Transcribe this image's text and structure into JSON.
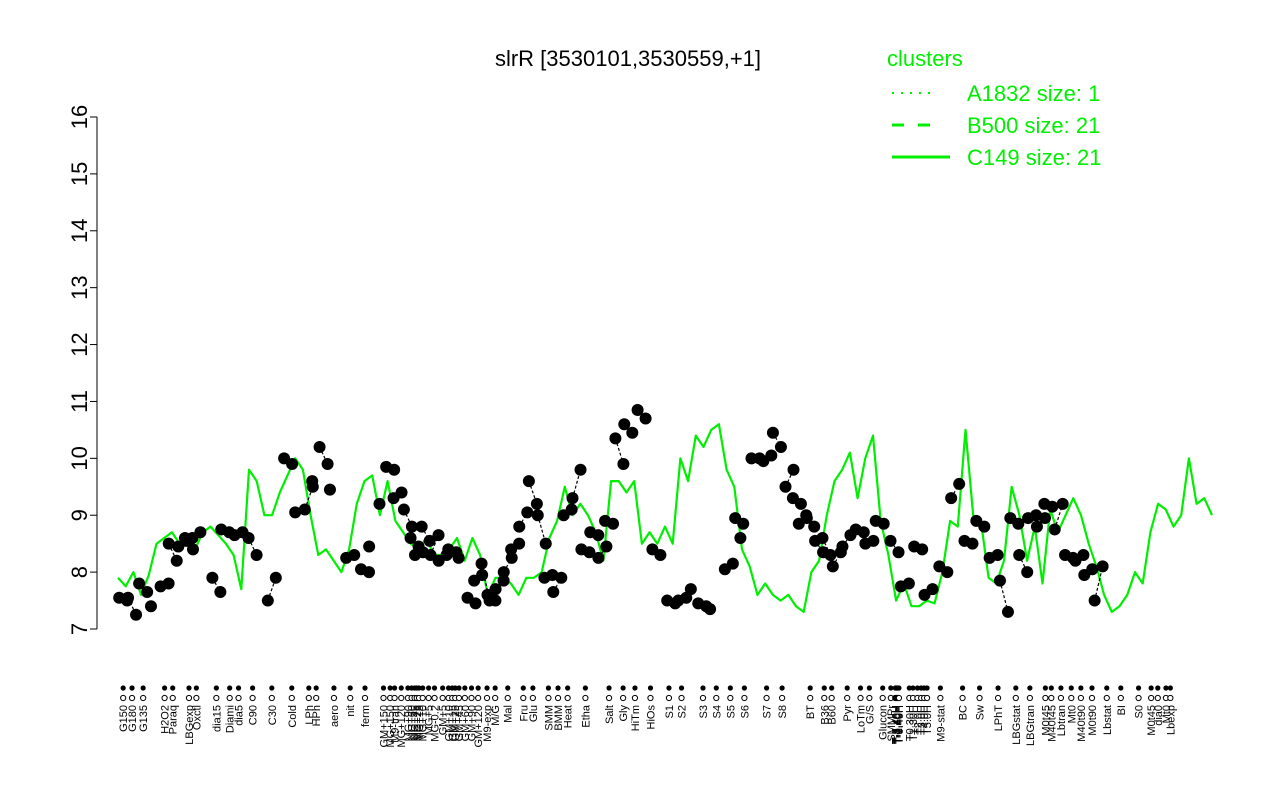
{
  "chart_data": {
    "type": "line",
    "title": "slrR [3530101,3530559,+1]",
    "xlabel": "",
    "ylabel": "",
    "ylim": [
      7,
      16
    ],
    "yticks": [
      7,
      8,
      9,
      10,
      11,
      12,
      13,
      14,
      15,
      16
    ],
    "grid": false,
    "legend": {
      "title": "clusters",
      "placement": "top-right",
      "color": "#00ee00",
      "entries": [
        {
          "label": "A1832 size: 1",
          "style": "dotted"
        },
        {
          "label": "B500 size: 21",
          "style": "dashed"
        },
        {
          "label": "C149 size: 21",
          "style": "solid"
        }
      ]
    },
    "colors": {
      "line": "#00ee00",
      "points": "#000000",
      "axis": "#000000"
    },
    "x_tick_labels": [
      "G150",
      "G180",
      "G135",
      "H2O2",
      "Paraq",
      "LBGexp",
      "Oxctl",
      "dia15",
      "Diami",
      "dia5",
      "C90",
      "C30",
      "Cold",
      "LPh",
      "HPh",
      "aero",
      "nit",
      "ferm",
      "GM+150",
      "MG+150",
      "M9-tran",
      "MG+120",
      "MG+90",
      "MG+60",
      "MG+45",
      "MG+25",
      "MG+15",
      "MG+10",
      "MG+5",
      "MG-0.2",
      "GM+5",
      "GM+10",
      "GM+15",
      "GM+25",
      "GM+45",
      "GM+60",
      "GM+90",
      "GM+120",
      "M9-exp",
      "M/G",
      "Mal",
      "Fru",
      "Glu",
      "SMM",
      "BMM",
      "Heat",
      "Etha",
      "Salt",
      "Gly",
      "HiTm",
      "HiOs",
      "S1",
      "S2",
      "S3",
      "S4",
      "S5",
      "S6",
      "S7",
      "S8",
      "BT",
      "B36",
      "B60",
      "Pyr",
      "LoTm",
      "G/S",
      "Glucon",
      "SMMPr",
      "T-5.40H",
      "T-4.40H",
      "T-3.40H",
      "T-2.40H",
      "T-1.40H",
      "T-0.40H",
      "T0.30H",
      "T1.30H",
      "T2.0H",
      "T3.0H",
      "T4.0H",
      "T5.0H",
      "M9-stat",
      "BC",
      "Sw",
      "LPhT",
      "LBGstat",
      "LBGtran",
      "M0t45",
      "M40t45",
      "Lbtran",
      "Mt0",
      "M40t90",
      "M0t90",
      "Lbstat",
      "BI",
      "S0",
      "M0t45",
      "dia0",
      "Mt0",
      "Lbexp"
    ],
    "x_label_positions": [
      0.007,
      0.019,
      0.034,
      0.063,
      0.074,
      0.096,
      0.106,
      0.133,
      0.151,
      0.163,
      0.182,
      0.208,
      0.235,
      0.258,
      0.268,
      0.292,
      0.314,
      0.334,
      0.359,
      0.368,
      0.374,
      0.383,
      0.392,
      0.397,
      0.401,
      0.404,
      0.407,
      0.412,
      0.42,
      0.428,
      0.439,
      0.447,
      0.452,
      0.456,
      0.461,
      0.469,
      0.478,
      0.487,
      0.499,
      0.51,
      0.527,
      0.548,
      0.561,
      0.582,
      0.595,
      0.608,
      0.632,
      0.664,
      0.683,
      0.699,
      0.72,
      0.745,
      0.762,
      0.791,
      0.809,
      0.828,
      0.847,
      0.877,
      0.898,
      0.936,
      0.955,
      0.965,
      0.986,
      1.004,
      1.016,
      1.034,
      1.045,
      1.051,
      1.052,
      1.053,
      1.054,
      1.055,
      1.056,
      1.07,
      1.075,
      1.081,
      1.086,
      1.09,
      1.094,
      1.112,
      1.142,
      1.165,
      1.19,
      1.214,
      1.233,
      1.254,
      1.262,
      1.275,
      1.289,
      1.302,
      1.317,
      1.337,
      1.356,
      1.38,
      1.397,
      1.406,
      1.417,
      1.423
    ],
    "series": [
      {
        "line": "solid",
        "x": [
          0,
          1,
          2,
          3,
          4,
          5,
          6,
          7,
          8,
          9,
          10,
          11,
          12,
          13,
          14,
          15,
          16,
          17,
          18,
          19,
          20,
          21,
          22,
          23,
          24,
          25,
          26,
          27,
          28,
          29,
          30,
          31,
          32,
          33,
          34,
          35,
          36,
          37,
          38,
          39,
          40,
          41,
          42,
          43,
          44,
          45,
          46,
          47,
          48,
          49,
          50,
          51,
          52,
          53,
          54,
          55,
          56,
          57,
          58,
          59,
          60,
          61,
          62,
          63,
          64,
          65,
          66,
          67,
          68,
          69,
          70,
          71,
          72,
          73,
          74,
          75,
          76,
          77,
          78,
          79,
          80,
          81,
          82,
          83,
          84,
          85,
          86,
          87,
          88,
          89,
          90,
          91,
          92,
          93,
          94,
          95,
          96,
          97,
          98,
          99,
          100,
          101,
          102,
          103,
          104,
          105,
          106,
          107,
          108,
          109,
          110,
          111,
          112,
          113,
          114,
          115,
          116,
          117,
          118,
          119,
          120,
          121,
          122,
          123,
          124,
          125,
          126,
          127,
          128,
          129,
          130,
          131,
          132,
          133,
          134,
          135,
          136,
          137,
          138,
          139,
          140,
          141,
          142
        ],
        "y": [
          7.9,
          7.75,
          8.0,
          7.6,
          7.95,
          8.5,
          8.6,
          8.7,
          8.5,
          8.6,
          8.4,
          8.7,
          8.8,
          8.65,
          8.5,
          8.3,
          7.7,
          9.8,
          9.6,
          9.0,
          9.0,
          9.4,
          9.7,
          10.0,
          9.8,
          9.0,
          8.3,
          8.4,
          8.2,
          8.0,
          8.4,
          9.2,
          9.6,
          9.7,
          9.0,
          9.6,
          8.9,
          8.7,
          8.5,
          8.4,
          8.6,
          8.3,
          8.3,
          8.4,
          8.6,
          8.2,
          8.6,
          8.3,
          7.6,
          7.9,
          7.9,
          7.8,
          7.6,
          7.9,
          7.9,
          8.0,
          8.6,
          8.9,
          9.5,
          9.0,
          9.2,
          9.0,
          8.7,
          8.2,
          9.6,
          9.6,
          9.4,
          9.6,
          8.5,
          8.7,
          8.5,
          8.8,
          8.5,
          10.0,
          9.6,
          10.4,
          10.2,
          10.5,
          10.6,
          9.8,
          9.5,
          8.4,
          8.1,
          7.6,
          7.8,
          7.6,
          7.5,
          7.6,
          7.4,
          7.3,
          8.0,
          8.2,
          9.0,
          9.6,
          9.8,
          10.1,
          9.3,
          10.0,
          10.4,
          8.9,
          8.3,
          7.5,
          7.8,
          7.4,
          7.4,
          7.5,
          7.45,
          8.0,
          8.9,
          8.8,
          10.5,
          9.0,
          8.9,
          7.9,
          7.8,
          8.2,
          9.5,
          9.0,
          8.2,
          8.8,
          7.8,
          9.1,
          8.7,
          9.0,
          9.3,
          9.0,
          8.5,
          8.1,
          7.6,
          7.3,
          7.4,
          7.6,
          8.0,
          7.8,
          8.7,
          9.2,
          9.1,
          8.8,
          9.0,
          10.0,
          9.2,
          9.3,
          9.0
        ]
      }
    ],
    "point_clusters": [
      {
        "x": 0.007,
        "y": [
          7.55,
          7.5
        ]
      },
      {
        "x": 0.019,
        "y": [
          7.55,
          7.25
        ]
      },
      {
        "x": 0.034,
        "y": [
          7.8,
          7.65
        ]
      },
      {
        "x": 0.05,
        "y": [
          7.4
        ]
      },
      {
        "x": 0.063,
        "y": [
          7.75,
          7.8
        ]
      },
      {
        "x": 0.074,
        "y": [
          8.5,
          8.2
        ]
      },
      {
        "x": 0.087,
        "y": [
          8.45,
          8.55
        ]
      },
      {
        "x": 0.096,
        "y": [
          8.6,
          8.4
        ]
      },
      {
        "x": 0.106,
        "y": [
          8.6,
          8.7
        ]
      },
      {
        "x": 0.133,
        "y": [
          7.9,
          7.65
        ]
      },
      {
        "x": 0.145,
        "y": [
          8.75,
          8.7
        ]
      },
      {
        "x": 0.163,
        "y": [
          8.65,
          8.7
        ]
      },
      {
        "x": 0.182,
        "y": [
          8.6,
          8.3
        ]
      },
      {
        "x": 0.208,
        "y": [
          7.5,
          7.9
        ]
      },
      {
        "x": 0.23,
        "y": [
          10.0,
          9.9
        ]
      },
      {
        "x": 0.245,
        "y": [
          9.05
        ]
      },
      {
        "x": 0.258,
        "y": [
          9.1,
          9.5
        ]
      },
      {
        "x": 0.268,
        "y": [
          9.6
        ]
      },
      {
        "x": 0.278,
        "y": [
          10.2,
          9.9
        ]
      },
      {
        "x": 0.292,
        "y": [
          9.45
        ]
      },
      {
        "x": 0.314,
        "y": [
          8.25,
          8.3
        ]
      },
      {
        "x": 0.334,
        "y": [
          8.05,
          8.0
        ]
      },
      {
        "x": 0.345,
        "y": [
          8.45
        ]
      },
      {
        "x": 0.359,
        "y": [
          9.2
        ]
      },
      {
        "x": 0.368,
        "y": [
          9.85,
          9.8
        ]
      },
      {
        "x": 0.378,
        "y": [
          9.3,
          9.4
        ]
      },
      {
        "x": 0.392,
        "y": [
          9.1,
          8.8
        ]
      },
      {
        "x": 0.401,
        "y": [
          8.6,
          8.45
        ]
      },
      {
        "x": 0.407,
        "y": [
          8.3,
          8.35
        ]
      },
      {
        "x": 0.416,
        "y": [
          8.8,
          8.55
        ]
      },
      {
        "x": 0.428,
        "y": [
          8.3,
          8.65
        ]
      },
      {
        "x": 0.439,
        "y": [
          8.2,
          8.3
        ]
      },
      {
        "x": 0.452,
        "y": [
          8.4,
          8.35
        ]
      },
      {
        "x": 0.466,
        "y": [
          8.25
        ]
      },
      {
        "x": 0.478,
        "y": [
          7.55,
          7.45
        ]
      },
      {
        "x": 0.487,
        "y": [
          7.85,
          7.95
        ]
      },
      {
        "x": 0.497,
        "y": [
          8.15,
          7.5
        ]
      },
      {
        "x": 0.505,
        "y": [
          7.6,
          7.5
        ]
      },
      {
        "x": 0.516,
        "y": [
          7.7,
          7.85
        ]
      },
      {
        "x": 0.527,
        "y": [
          8.0,
          8.25
        ]
      },
      {
        "x": 0.537,
        "y": [
          8.4,
          8.5
        ]
      },
      {
        "x": 0.548,
        "y": [
          8.8,
          9.05
        ]
      },
      {
        "x": 0.561,
        "y": [
          9.6,
          9.2
        ]
      },
      {
        "x": 0.573,
        "y": [
          9.0,
          8.5
        ]
      },
      {
        "x": 0.582,
        "y": [
          7.9,
          7.95
        ]
      },
      {
        "x": 0.594,
        "y": [
          7.65,
          7.9
        ]
      },
      {
        "x": 0.608,
        "y": [
          9.0,
          9.1
        ]
      },
      {
        "x": 0.62,
        "y": [
          9.3,
          9.8
        ]
      },
      {
        "x": 0.632,
        "y": [
          8.4,
          8.35
        ]
      },
      {
        "x": 0.644,
        "y": [
          8.7,
          8.65
        ]
      },
      {
        "x": 0.655,
        "y": [
          8.25,
          8.45
        ]
      },
      {
        "x": 0.664,
        "y": [
          8.9,
          8.85
        ]
      },
      {
        "x": 0.678,
        "y": [
          10.35,
          9.9
        ]
      },
      {
        "x": 0.69,
        "y": [
          10.6,
          10.45
        ]
      },
      {
        "x": 0.708,
        "y": [
          10.85,
          10.7
        ]
      },
      {
        "x": 0.728,
        "y": [
          8.4,
          8.3
        ]
      },
      {
        "x": 0.748,
        "y": [
          7.5,
          7.45
        ]
      },
      {
        "x": 0.763,
        "y": [
          7.5,
          7.55
        ]
      },
      {
        "x": 0.78,
        "y": [
          7.7
        ]
      },
      {
        "x": 0.79,
        "y": [
          7.45,
          7.4
        ]
      },
      {
        "x": 0.806,
        "y": [
          7.35
        ]
      },
      {
        "x": 0.826,
        "y": [
          8.05,
          8.15
        ]
      },
      {
        "x": 0.84,
        "y": [
          8.95,
          8.85
        ]
      },
      {
        "x": 0.847,
        "y": [
          8.6
        ]
      },
      {
        "x": 0.862,
        "y": [
          10.0,
          10.0
        ]
      },
      {
        "x": 0.878,
        "y": [
          9.95,
          10.05
        ]
      },
      {
        "x": 0.891,
        "y": [
          10.45,
          10.2
        ]
      },
      {
        "x": 0.908,
        "y": [
          9.5,
          9.8
        ]
      },
      {
        "x": 0.918,
        "y": [
          9.3,
          9.2
        ]
      },
      {
        "x": 0.926,
        "y": [
          8.85,
          8.95
        ]
      },
      {
        "x": 0.936,
        "y": [
          9.0,
          8.8
        ]
      },
      {
        "x": 0.948,
        "y": [
          8.55,
          8.35
        ]
      },
      {
        "x": 0.958,
        "y": [
          8.6,
          8.3
        ]
      },
      {
        "x": 0.972,
        "y": [
          8.1,
          8.35
        ]
      },
      {
        "x": 0.985,
        "y": [
          8.45,
          8.65
        ]
      },
      {
        "x": 1.003,
        "y": [
          8.75,
          8.7
        ]
      },
      {
        "x": 1.016,
        "y": [
          8.5,
          8.55
        ]
      },
      {
        "x": 1.03,
        "y": [
          8.9,
          8.85
        ]
      },
      {
        "x": 1.05,
        "y": [
          8.55,
          8.35
        ]
      },
      {
        "x": 1.064,
        "y": [
          7.75,
          7.8
        ]
      },
      {
        "x": 1.082,
        "y": [
          8.45,
          8.4
        ]
      },
      {
        "x": 1.096,
        "y": [
          7.6,
          7.7
        ]
      },
      {
        "x": 1.116,
        "y": [
          8.1,
          8.0
        ]
      },
      {
        "x": 1.132,
        "y": [
          9.3,
          9.55
        ]
      },
      {
        "x": 1.15,
        "y": [
          8.55,
          8.5
        ]
      },
      {
        "x": 1.166,
        "y": [
          8.9,
          8.8
        ]
      },
      {
        "x": 1.184,
        "y": [
          8.25,
          8.3
        ]
      },
      {
        "x": 1.198,
        "y": [
          7.85,
          7.3
        ]
      },
      {
        "x": 1.212,
        "y": [
          8.95,
          8.85
        ]
      },
      {
        "x": 1.224,
        "y": [
          8.3,
          8.0
        ]
      },
      {
        "x": 1.236,
        "y": [
          8.95,
          9.0
        ]
      },
      {
        "x": 1.248,
        "y": [
          8.8,
          8.95
        ]
      },
      {
        "x": 1.258,
        "y": [
          9.2,
          9.15
        ]
      },
      {
        "x": 1.272,
        "y": [
          8.75,
          9.2
        ]
      },
      {
        "x": 1.286,
        "y": [
          8.3,
          8.25
        ]
      },
      {
        "x": 1.3,
        "y": [
          8.2,
          8.3
        ]
      },
      {
        "x": 1.312,
        "y": [
          7.95,
          8.05
        ]
      },
      {
        "x": 1.326,
        "y": [
          7.5,
          8.1
        ]
      }
    ]
  }
}
